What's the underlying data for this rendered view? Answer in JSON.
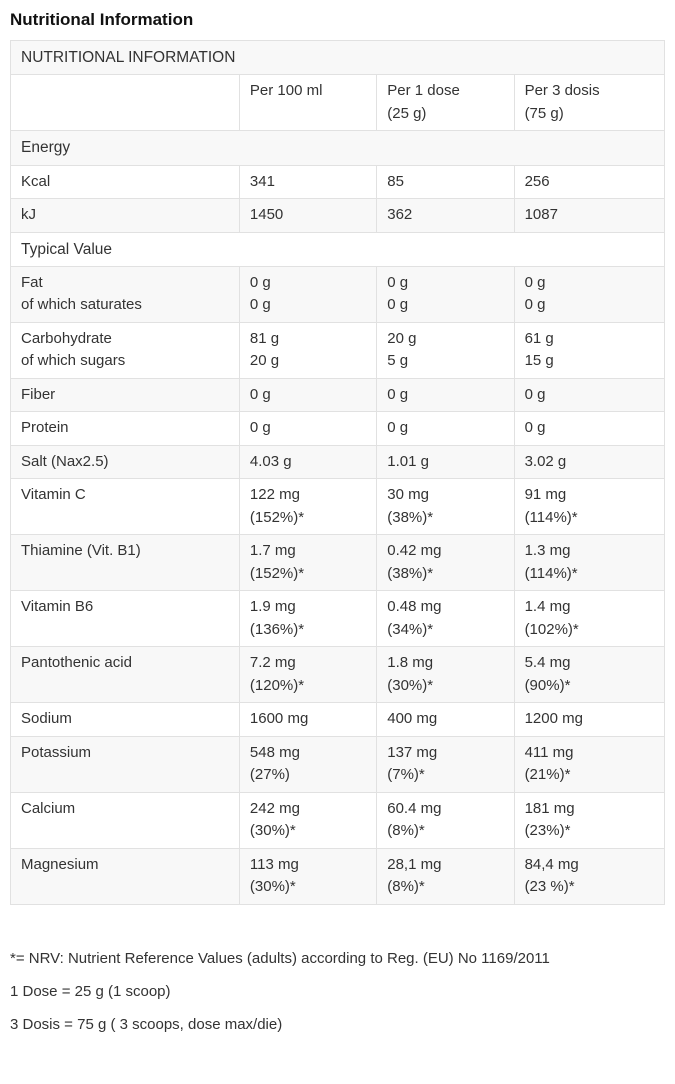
{
  "page": {
    "title": "Nutritional Information"
  },
  "table": {
    "title_row": "NUTRITIONAL INFORMATION",
    "column_headers": [
      "",
      "Per 100 ml",
      "Per 1 dose\n(25 g)",
      "Per 3 dosis\n(75 g)"
    ],
    "rows": [
      {
        "type": "section",
        "label": "Energy"
      },
      {
        "type": "data",
        "label": "Kcal",
        "values": [
          "341",
          "85",
          "256"
        ]
      },
      {
        "type": "data",
        "label": "kJ",
        "values": [
          "1450",
          "362",
          "1087"
        ]
      },
      {
        "type": "section",
        "label": "Typical Value"
      },
      {
        "type": "data",
        "label": "Fat\nof which saturates",
        "values": [
          "0 g\n0 g",
          "0 g\n0 g",
          "0 g\n0 g"
        ]
      },
      {
        "type": "data",
        "label": "Carbohydrate\nof which sugars",
        "values": [
          "81 g\n20 g",
          "20 g\n5 g",
          "61 g\n15 g"
        ]
      },
      {
        "type": "data",
        "label": "Fiber",
        "values": [
          "0 g",
          "0 g",
          "0 g"
        ]
      },
      {
        "type": "data",
        "label": "Protein",
        "values": [
          "0 g",
          "0 g",
          "0 g"
        ]
      },
      {
        "type": "data",
        "label": "Salt (Nax2.5)",
        "values": [
          "4.03 g",
          "1.01 g",
          "3.02 g"
        ]
      },
      {
        "type": "data",
        "label": "Vitamin C",
        "values": [
          "122 mg\n(152%)*",
          "30 mg\n(38%)*",
          "91 mg\n(114%)*"
        ]
      },
      {
        "type": "data",
        "label": "Thiamine (Vit. B1)",
        "values": [
          "1.7 mg\n(152%)*",
          "0.42 mg\n(38%)*",
          "1.3 mg\n(114%)*"
        ]
      },
      {
        "type": "data",
        "label": "Vitamin B6",
        "values": [
          "1.9 mg\n(136%)*",
          "0.48 mg\n(34%)*",
          "1.4 mg\n(102%)*"
        ]
      },
      {
        "type": "data",
        "label": "Pantothenic acid",
        "values": [
          "7.2 mg\n(120%)*",
          "1.8 mg\n(30%)*",
          "5.4 mg\n(90%)*"
        ]
      },
      {
        "type": "data",
        "label": "Sodium",
        "values": [
          "1600 mg",
          "400 mg",
          "1200 mg"
        ]
      },
      {
        "type": "data",
        "label": "Potassium",
        "values": [
          "548 mg\n(27%)",
          "137 mg\n(7%)*",
          "411 mg\n(21%)*"
        ]
      },
      {
        "type": "data",
        "label": "Calcium",
        "values": [
          "242 mg\n(30%)*",
          "60.4 mg\n(8%)*",
          "181 mg\n(23%)*"
        ]
      },
      {
        "type": "data",
        "label": "Magnesium",
        "values": [
          "113 mg\n(30%)*",
          "28,1 mg\n(8%)*",
          "84,4 mg\n(23 %)*"
        ]
      }
    ]
  },
  "footnotes": [
    "*= NRV: Nutrient Reference Values (adults) according to Reg. (EU) No 1169/2011",
    "1 Dose = 25 g (1 scoop)",
    "3 Dosis = 75 g ( 3 scoops, dose max/die)"
  ],
  "colors": {
    "stripe_background": "#f8f8f8",
    "border": "#e1e1e1",
    "text": "#333333",
    "title_text": "#111111"
  }
}
